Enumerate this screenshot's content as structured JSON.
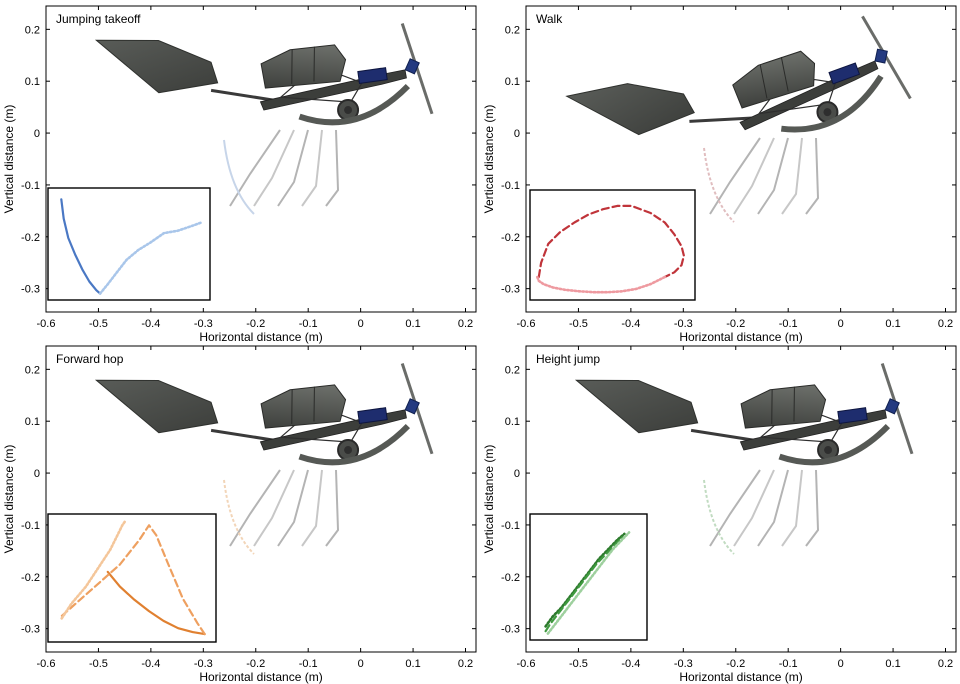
{
  "figure": {
    "axis_labels": {
      "xlabel": "Horizontal distance (m)",
      "ylabel": "Vertical distance (m)"
    },
    "colors": {
      "takeoff": "#4a78c4",
      "walk": "#c0343a",
      "hop": "#e88a38",
      "height": "#2d7a2d",
      "robot_body": "#4a4d4a",
      "battery": "#1e2d6e"
    }
  },
  "chart_data": [
    {
      "type": "line",
      "title": "Jumping takeoff",
      "xlabel": "Horizontal distance (m)",
      "ylabel": "Vertical distance (m)",
      "xlim": [
        -0.6,
        0.22
      ],
      "ylim": [
        -0.345,
        0.245
      ],
      "xticks": [
        -0.6,
        -0.5,
        -0.4,
        -0.3,
        -0.2,
        -0.1,
        0,
        0.1,
        0.2
      ],
      "yticks": [
        -0.3,
        -0.2,
        -0.1,
        0,
        0.1,
        0.2
      ],
      "xtick_labels": [
        "-0.6",
        "-0.5",
        "-0.4",
        "-0.3",
        "-0.2",
        "-0.1",
        "0",
        "0.1",
        "0.2"
      ],
      "ytick_labels": [
        "-0.3",
        "-0.2",
        "-0.1",
        "0",
        "0.1",
        "0.2"
      ],
      "inset": {
        "xlim": [
          -0.6,
          -0.27
        ],
        "ylim": [
          -0.33,
          -0.115
        ],
        "series": [
          {
            "style": "solid",
            "color": "#4a78c4",
            "x": [
              -0.58,
              -0.575,
              -0.565,
              -0.55,
              -0.535,
              -0.52,
              -0.505,
              -0.497
            ],
            "y": [
              -0.13,
              -0.17,
              -0.21,
              -0.245,
              -0.275,
              -0.3,
              -0.318,
              -0.325
            ]
          },
          {
            "style": "dotted",
            "color": "#a9c6ea",
            "x": [
              -0.497,
              -0.48,
              -0.46,
              -0.44,
              -0.415,
              -0.39,
              -0.36,
              -0.33,
              -0.3,
              -0.28
            ],
            "y": [
              -0.325,
              -0.305,
              -0.28,
              -0.255,
              -0.235,
              -0.22,
              -0.2,
              -0.195,
              -0.185,
              -0.178
            ]
          }
        ]
      }
    },
    {
      "type": "line",
      "title": "Walk",
      "xlabel": "Horizontal distance (m)",
      "ylabel": "Vertical distance (m)",
      "xlim": [
        -0.6,
        0.22
      ],
      "ylim": [
        -0.345,
        0.245
      ],
      "xticks": [
        -0.6,
        -0.5,
        -0.4,
        -0.3,
        -0.2,
        -0.1,
        0,
        0.1,
        0.2
      ],
      "yticks": [
        -0.3,
        -0.2,
        -0.1,
        0,
        0.1,
        0.2
      ],
      "xtick_labels": [
        "-0.6",
        "-0.5",
        "-0.4",
        "-0.3",
        "-0.2",
        "-0.1",
        "0",
        "0.1",
        "0.2"
      ],
      "ytick_labels": [
        "-0.3",
        "-0.2",
        "-0.1",
        "0",
        "0.1",
        "0.2"
      ],
      "inset": {
        "xlim": [
          -0.585,
          -0.255
        ],
        "ylim": [
          -0.33,
          -0.115
        ],
        "series": [
          {
            "style": "dashed",
            "color": "#c0343a",
            "x": [
              -0.575,
              -0.57,
              -0.555,
              -0.53,
              -0.5,
              -0.47,
              -0.44,
              -0.41,
              -0.38,
              -0.34,
              -0.31,
              -0.29,
              -0.275,
              -0.27,
              -0.275,
              -0.29,
              -0.31
            ],
            "y": [
              -0.29,
              -0.26,
              -0.22,
              -0.195,
              -0.175,
              -0.158,
              -0.147,
              -0.14,
              -0.14,
              -0.155,
              -0.175,
              -0.2,
              -0.225,
              -0.245,
              -0.265,
              -0.28,
              -0.29
            ]
          },
          {
            "style": "dotted",
            "color": "#ee9aa0",
            "x": [
              -0.31,
              -0.34,
              -0.37,
              -0.4,
              -0.43,
              -0.46,
              -0.49,
              -0.52,
              -0.545,
              -0.565,
              -0.575,
              -0.578,
              -0.575
            ],
            "y": [
              -0.29,
              -0.305,
              -0.315,
              -0.32,
              -0.322,
              -0.322,
              -0.32,
              -0.317,
              -0.312,
              -0.305,
              -0.298,
              -0.29,
              -0.29
            ]
          }
        ]
      }
    },
    {
      "type": "line",
      "title": "Forward hop",
      "xlabel": "Horizontal distance (m)",
      "ylabel": "Vertical distance (m)",
      "xlim": [
        -0.6,
        0.22
      ],
      "ylim": [
        -0.345,
        0.245
      ],
      "xticks": [
        -0.6,
        -0.5,
        -0.4,
        -0.3,
        -0.2,
        -0.1,
        0,
        0.1,
        0.2
      ],
      "yticks": [
        -0.3,
        -0.2,
        -0.1,
        0,
        0.1,
        0.2
      ],
      "xtick_labels": [
        "-0.6",
        "-0.5",
        "-0.4",
        "-0.3",
        "-0.2",
        "-0.1",
        "0",
        "0.1",
        "0.2"
      ],
      "ytick_labels": [
        "-0.3",
        "-0.2",
        "-0.1",
        "0",
        "0.1",
        "0.2"
      ],
      "inset": {
        "xlim": [
          -0.6,
          -0.27
        ],
        "ylim": [
          -0.33,
          -0.085
        ],
        "series": [
          {
            "style": "solid",
            "color": "#e08030",
            "x": [
              -0.485,
              -0.46,
              -0.43,
              -0.4,
              -0.37,
              -0.34,
              -0.31,
              -0.285
            ],
            "y": [
              -0.195,
              -0.225,
              -0.252,
              -0.275,
              -0.295,
              -0.31,
              -0.318,
              -0.322
            ]
          },
          {
            "style": "dashed",
            "color": "#eea060",
            "x": [
              -0.285,
              -0.3,
              -0.33,
              -0.36,
              -0.385,
              -0.4,
              -0.42,
              -0.46,
              -0.5,
              -0.54,
              -0.58
            ],
            "y": [
              -0.322,
              -0.3,
              -0.25,
              -0.18,
              -0.12,
              -0.1,
              -0.13,
              -0.18,
              -0.215,
              -0.25,
              -0.285
            ]
          },
          {
            "style": "dotted",
            "color": "#f4c69a",
            "x": [
              -0.58,
              -0.56,
              -0.53,
              -0.5,
              -0.48,
              -0.465,
              -0.455,
              -0.448
            ],
            "y": [
              -0.29,
              -0.26,
              -0.225,
              -0.18,
              -0.15,
              -0.12,
              -0.1,
              -0.09
            ]
          }
        ]
      }
    },
    {
      "type": "line",
      "title": "Height jump",
      "xlabel": "Horizontal distance (m)",
      "ylabel": "Vertical distance (m)",
      "xlim": [
        -0.6,
        0.22
      ],
      "ylim": [
        -0.345,
        0.245
      ],
      "xticks": [
        -0.6,
        -0.5,
        -0.4,
        -0.3,
        -0.2,
        -0.1,
        0,
        0.1,
        0.2
      ],
      "yticks": [
        -0.3,
        -0.2,
        -0.1,
        0,
        0.1,
        0.2
      ],
      "xtick_labels": [
        "-0.6",
        "-0.5",
        "-0.4",
        "-0.3",
        "-0.2",
        "-0.1",
        "0",
        "0.1",
        "0.2"
      ],
      "ytick_labels": [
        "-0.3",
        "-0.2",
        "-0.1",
        "0",
        "0.1",
        "0.2"
      ],
      "inset": {
        "xlim": [
          -0.6,
          -0.365
        ],
        "ylim": [
          -0.33,
          -0.085
        ],
        "series": [
          {
            "style": "dotted",
            "color": "#2d7a2d",
            "x": [
              -0.575,
              -0.56,
              -0.54,
              -0.52,
              -0.5,
              -0.48,
              -0.46,
              -0.44,
              -0.42,
              -0.405
            ],
            "y": [
              -0.31,
              -0.29,
              -0.27,
              -0.245,
              -0.22,
              -0.195,
              -0.17,
              -0.15,
              -0.13,
              -0.118
            ]
          },
          {
            "style": "dashed",
            "color": "#3f9a3f",
            "x": [
              -0.575,
              -0.565,
              -0.545,
              -0.525,
              -0.505,
              -0.485,
              -0.465,
              -0.445,
              -0.425,
              -0.41
            ],
            "y": [
              -0.32,
              -0.305,
              -0.28,
              -0.255,
              -0.23,
              -0.205,
              -0.18,
              -0.16,
              -0.14,
              -0.125
            ]
          },
          {
            "style": "dotted",
            "color": "#9ed09e",
            "x": [
              -0.57,
              -0.55,
              -0.53,
              -0.51,
              -0.49,
              -0.47,
              -0.45,
              -0.43,
              -0.41,
              -0.395
            ],
            "y": [
              -0.325,
              -0.3,
              -0.275,
              -0.25,
              -0.225,
              -0.2,
              -0.175,
              -0.15,
              -0.13,
              -0.115
            ]
          }
        ]
      }
    }
  ]
}
